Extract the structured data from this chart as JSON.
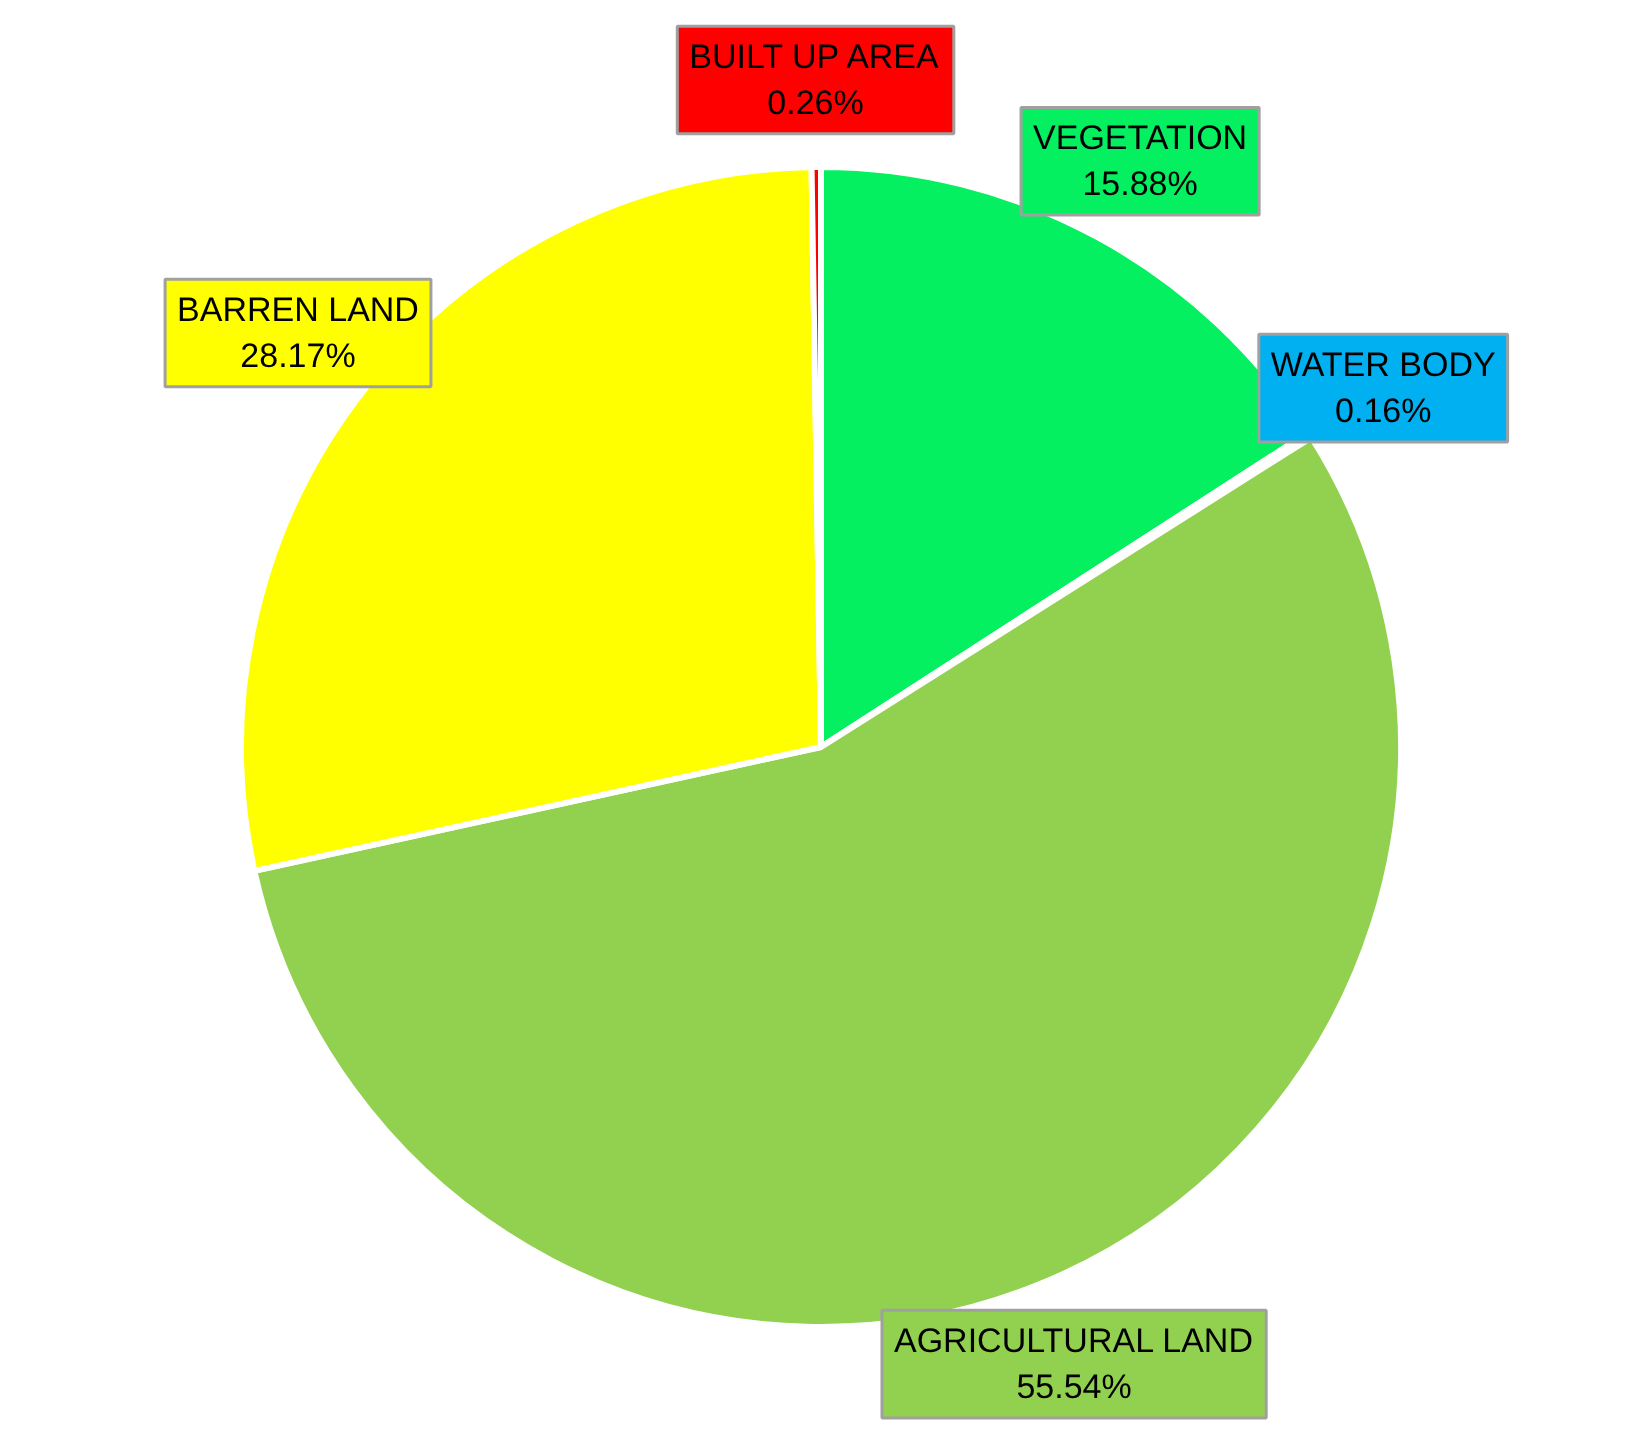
{
  "chart_data": {
    "type": "pie",
    "categories": [
      "VEGETATION",
      "WATER BODY",
      "AGRICULTURAL LAND",
      "BARREN LAND",
      "BUILT UP AREA"
    ],
    "values": [
      15.88,
      0.16,
      55.54,
      28.17,
      0.26
    ],
    "value_labels": [
      "15.88%",
      "0.16%",
      "55.54%",
      "28.17%",
      "0.26%"
    ],
    "colors": [
      "#05f060",
      "#00b0f0",
      "#92d050",
      "#ffff00",
      "#ff0000"
    ]
  }
}
